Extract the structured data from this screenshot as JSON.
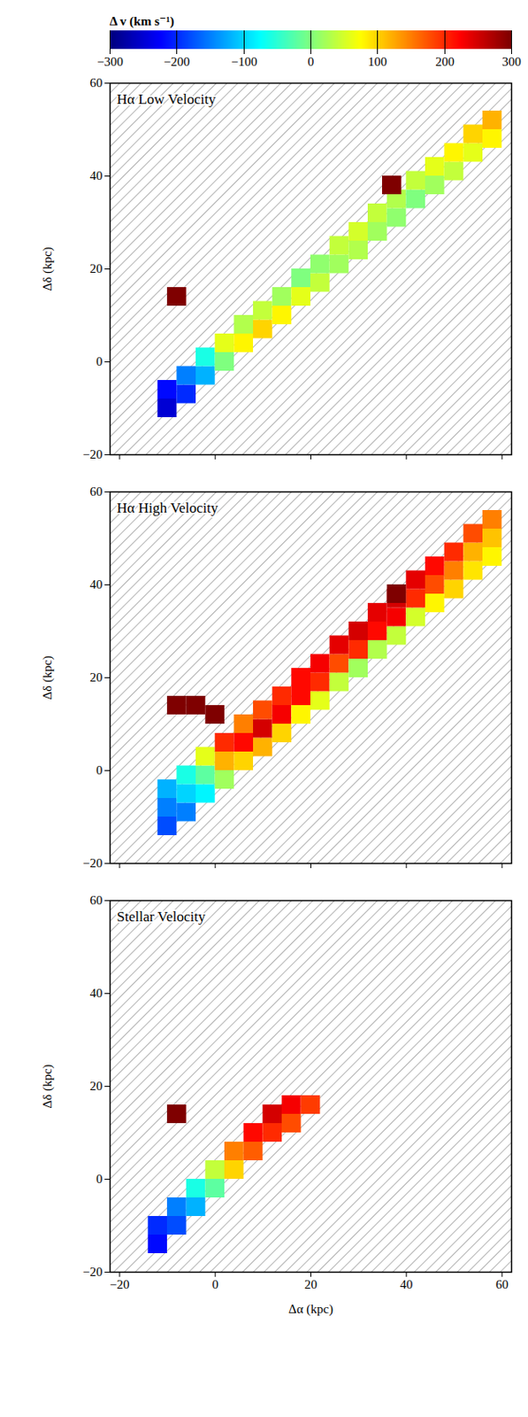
{
  "chart_data": {
    "type": "heatmap",
    "xlabel": "Δα (kpc)",
    "ylabel": "Δδ (kpc)",
    "xlim": [
      -22,
      62
    ],
    "ylim": [
      -20,
      60
    ],
    "xticks": [
      -20,
      0,
      20,
      40,
      60
    ],
    "yticks": [
      -20,
      0,
      20,
      40,
      60
    ],
    "cell_size": 4,
    "colorbar": {
      "label": "Δ v (km s⁻¹)",
      "range": [
        -300,
        300
      ],
      "ticks": [
        -300,
        -200,
        -100,
        0,
        100,
        200,
        300
      ]
    },
    "panels": [
      {
        "title": "Hα Low Velocity",
        "tick_labels": "y",
        "cells": [
          [
            -10,
            -10,
            -250
          ],
          [
            -10,
            -6,
            -220
          ],
          [
            -6,
            -7,
            -200
          ],
          [
            -6,
            -3,
            -150
          ],
          [
            -2,
            -3,
            -120
          ],
          [
            -2,
            1,
            -60
          ],
          [
            2,
            0,
            0
          ],
          [
            2,
            4,
            60
          ],
          [
            6,
            4,
            80
          ],
          [
            6,
            8,
            30
          ],
          [
            10,
            7,
            100
          ],
          [
            10,
            11,
            40
          ],
          [
            14,
            10,
            80
          ],
          [
            14,
            14,
            20
          ],
          [
            18,
            14,
            60
          ],
          [
            18,
            18,
            0
          ],
          [
            22,
            17,
            40
          ],
          [
            22,
            21,
            10
          ],
          [
            26,
            21,
            20
          ],
          [
            26,
            25,
            40
          ],
          [
            30,
            24,
            30
          ],
          [
            30,
            28,
            50
          ],
          [
            34,
            28,
            20
          ],
          [
            34,
            32,
            40
          ],
          [
            38,
            31,
            10
          ],
          [
            38,
            35,
            30
          ],
          [
            42,
            35,
            0
          ],
          [
            42,
            39,
            40
          ],
          [
            46,
            38,
            20
          ],
          [
            46,
            42,
            60
          ],
          [
            50,
            41,
            40
          ],
          [
            50,
            45,
            80
          ],
          [
            54,
            45,
            60
          ],
          [
            54,
            49,
            100
          ],
          [
            58,
            48,
            80
          ],
          [
            58,
            52,
            120
          ],
          [
            -8,
            14,
            300
          ],
          [
            37,
            38,
            300
          ]
        ]
      },
      {
        "title": "Hα High Velocity",
        "tick_labels": "y",
        "cells": [
          [
            -10,
            -12,
            -180
          ],
          [
            -10,
            -8,
            -150
          ],
          [
            -10,
            -4,
            -120
          ],
          [
            -6,
            -9,
            -150
          ],
          [
            -6,
            -5,
            -100
          ],
          [
            -6,
            -1,
            -60
          ],
          [
            -2,
            -5,
            -80
          ],
          [
            -2,
            -1,
            -20
          ],
          [
            -2,
            3,
            60
          ],
          [
            2,
            -2,
            20
          ],
          [
            2,
            2,
            120
          ],
          [
            2,
            6,
            200
          ],
          [
            6,
            2,
            100
          ],
          [
            6,
            6,
            220
          ],
          [
            6,
            10,
            150
          ],
          [
            10,
            5,
            120
          ],
          [
            10,
            9,
            250
          ],
          [
            10,
            13,
            180
          ],
          [
            14,
            8,
            100
          ],
          [
            14,
            12,
            230
          ],
          [
            14,
            16,
            200
          ],
          [
            18,
            12,
            80
          ],
          [
            18,
            16,
            220
          ],
          [
            18,
            20,
            220
          ],
          [
            22,
            15,
            60
          ],
          [
            22,
            19,
            200
          ],
          [
            22,
            23,
            230
          ],
          [
            26,
            19,
            40
          ],
          [
            26,
            23,
            180
          ],
          [
            26,
            27,
            240
          ],
          [
            30,
            22,
            20
          ],
          [
            30,
            26,
            200
          ],
          [
            30,
            30,
            250
          ],
          [
            34,
            26,
            30
          ],
          [
            34,
            30,
            220
          ],
          [
            34,
            34,
            240
          ],
          [
            38,
            29,
            40
          ],
          [
            38,
            33,
            230
          ],
          [
            38,
            37,
            250
          ],
          [
            42,
            33,
            50
          ],
          [
            42,
            37,
            200
          ],
          [
            42,
            41,
            240
          ],
          [
            46,
            36,
            80
          ],
          [
            46,
            40,
            180
          ],
          [
            46,
            44,
            220
          ],
          [
            50,
            39,
            100
          ],
          [
            50,
            43,
            150
          ],
          [
            50,
            47,
            200
          ],
          [
            54,
            43,
            90
          ],
          [
            54,
            47,
            120
          ],
          [
            54,
            51,
            180
          ],
          [
            58,
            46,
            80
          ],
          [
            58,
            50,
            110
          ],
          [
            58,
            54,
            150
          ],
          [
            -8,
            14,
            300
          ],
          [
            -4,
            14,
            300
          ],
          [
            0,
            12,
            300
          ],
          [
            38,
            38,
            300
          ]
        ]
      },
      {
        "title": "Stellar Velocity",
        "cells": [
          [
            -12,
            -14,
            -220
          ],
          [
            -12,
            -10,
            -200
          ],
          [
            -8,
            -10,
            -180
          ],
          [
            -8,
            -6,
            -150
          ],
          [
            -4,
            -6,
            -120
          ],
          [
            -4,
            -2,
            -60
          ],
          [
            0,
            -2,
            -20
          ],
          [
            0,
            2,
            40
          ],
          [
            4,
            2,
            100
          ],
          [
            4,
            6,
            150
          ],
          [
            8,
            6,
            170
          ],
          [
            8,
            10,
            220
          ],
          [
            12,
            10,
            200
          ],
          [
            12,
            14,
            250
          ],
          [
            16,
            12,
            180
          ],
          [
            16,
            16,
            230
          ],
          [
            20,
            16,
            190
          ],
          [
            -8,
            14,
            300
          ]
        ]
      }
    ]
  }
}
